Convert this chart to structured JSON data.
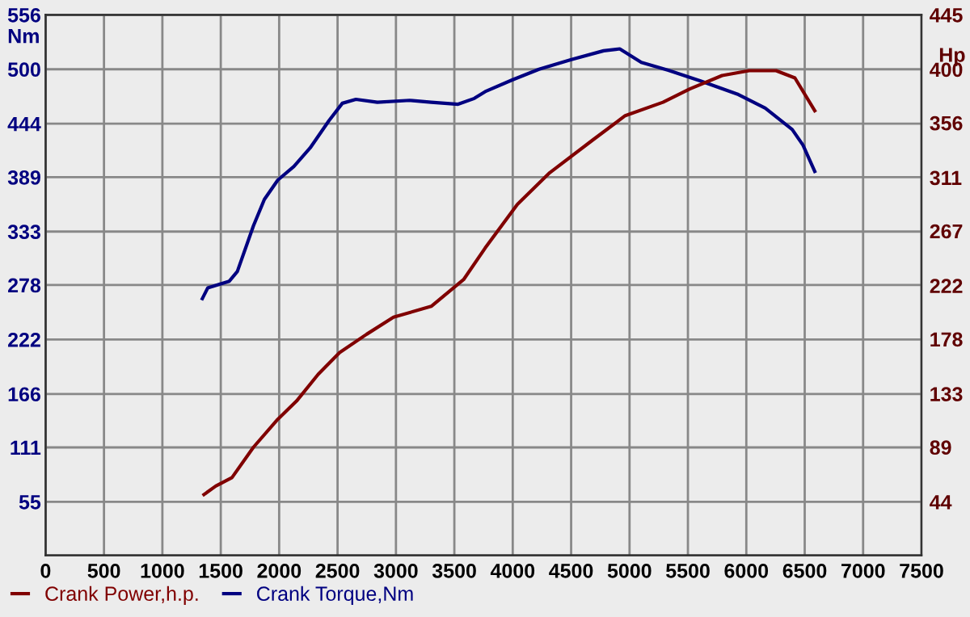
{
  "chart_data": {
    "type": "line",
    "ylabel": "Nm",
    "y2label": "Hp",
    "xlim": [
      0,
      7500
    ],
    "xticks": [
      0,
      500,
      1000,
      1500,
      2000,
      2500,
      3000,
      3500,
      4000,
      4500,
      5000,
      5500,
      6000,
      6500,
      7000,
      7500
    ],
    "ylim": [
      0,
      556
    ],
    "yticks": [
      55,
      111,
      166,
      222,
      278,
      333,
      389,
      444,
      500,
      556
    ],
    "y2lim": [
      0,
      445
    ],
    "y2ticks": [
      44,
      89,
      133,
      178,
      222,
      267,
      311,
      356,
      400,
      445
    ],
    "grid": true,
    "legend": "bottom",
    "marker": "none",
    "line_style": "solid",
    "series": [
      {
        "name": "Crank Power,h.p.",
        "color": "#800000",
        "axis": "y2",
        "x": [
          1356,
          1457,
          1596,
          1780,
          1988,
          2149,
          2334,
          2518,
          2749,
          2979,
          3302,
          3579,
          3764,
          4040,
          4317,
          4686,
          4963,
          5286,
          5516,
          5793,
          6024,
          6255,
          6416,
          6586
        ],
        "values": [
          50,
          57,
          64,
          89,
          112,
          127,
          149,
          167,
          182,
          196,
          205,
          227,
          253,
          289,
          315,
          342,
          362,
          373,
          384,
          395,
          399,
          399,
          393,
          366
        ]
      },
      {
        "name": "Crank Torque,Nm",
        "color": "#000080",
        "axis": "y",
        "x": [
          1342,
          1388,
          1573,
          1642,
          1780,
          1873,
          1988,
          2126,
          2265,
          2426,
          2541,
          2657,
          2841,
          3118,
          3302,
          3532,
          3671,
          3764,
          3995,
          4225,
          4502,
          4778,
          4916,
          5101,
          5332,
          5608,
          5932,
          6162,
          6393,
          6485,
          6586
        ],
        "values": [
          264,
          275,
          282,
          292,
          339,
          366,
          386,
          400,
          419,
          447,
          465,
          469,
          466,
          468,
          466,
          464,
          470,
          477,
          489,
          500,
          510,
          519,
          521,
          507,
          499,
          488,
          474,
          460,
          438,
          422,
          395
        ]
      }
    ]
  }
}
